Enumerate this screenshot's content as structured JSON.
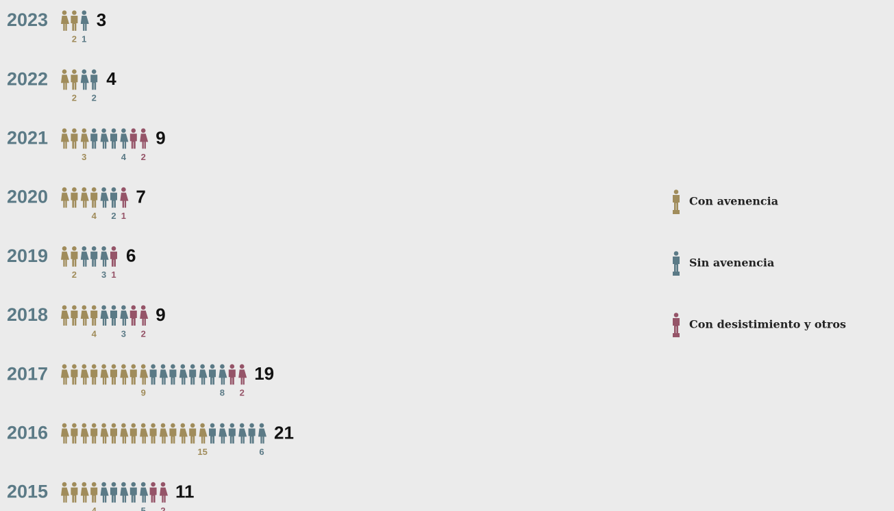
{
  "chart_data": {
    "type": "pictogram",
    "categories": [
      "2023",
      "2022",
      "2021",
      "2020",
      "2019",
      "2018",
      "2017",
      "2016",
      "2015"
    ],
    "series": [
      {
        "name": "Con avenencia",
        "color": "#a08c5b",
        "values": [
          2,
          2,
          3,
          4,
          2,
          4,
          9,
          15,
          4
        ]
      },
      {
        "name": "Sin avenencia",
        "color": "#5b7a86",
        "values": [
          1,
          2,
          4,
          2,
          3,
          3,
          8,
          6,
          5
        ]
      },
      {
        "name": "Con desistimiento y otros",
        "color": "#955468",
        "values": [
          0,
          0,
          2,
          1,
          1,
          2,
          2,
          0,
          2
        ]
      }
    ],
    "totals": [
      3,
      4,
      9,
      7,
      6,
      9,
      19,
      21,
      11
    ],
    "legend": "right"
  }
}
